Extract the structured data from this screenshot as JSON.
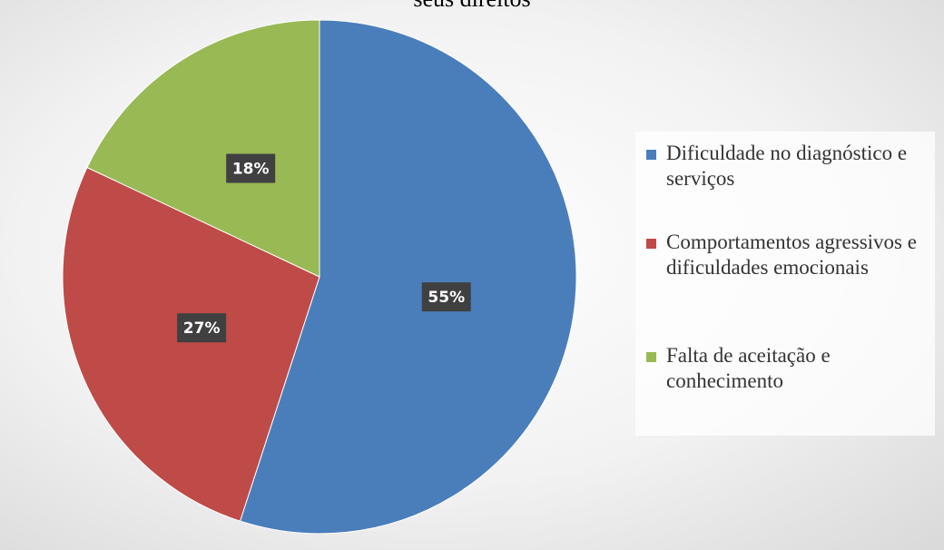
{
  "chart_data": {
    "type": "pie",
    "title": "seus direitos",
    "categories": [
      "Dificuldade no diagnóstico e serviços",
      "Comportamentos agressivos e dificuldades emocionais",
      "Falta de aceitação e conhecimento"
    ],
    "values": [
      55,
      27,
      18
    ],
    "value_labels": [
      "55%",
      "27%",
      "18%"
    ],
    "colors": [
      "#4a7ebb",
      "#be4b48",
      "#98b954"
    ],
    "legend": "right"
  }
}
